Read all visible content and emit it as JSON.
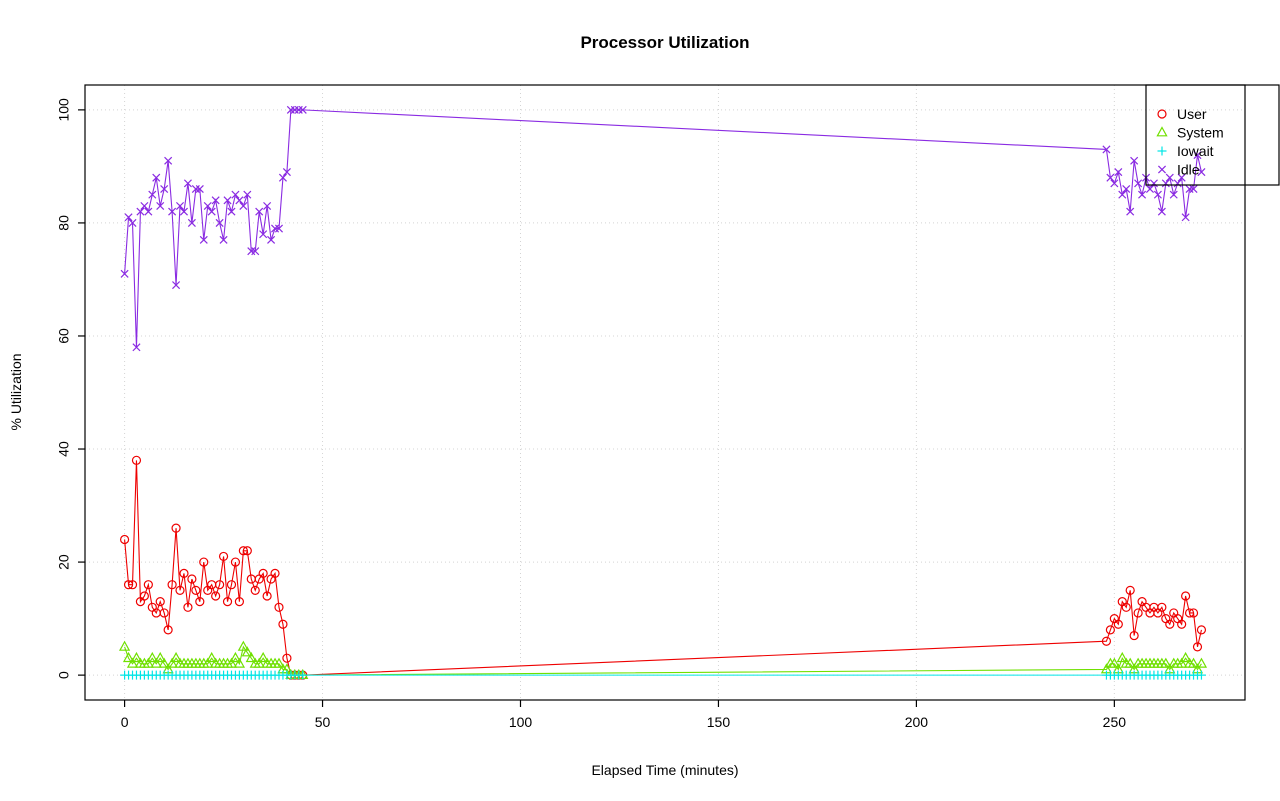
{
  "chart_data": {
    "type": "scatter",
    "title": "Processor Utilization",
    "xlabel": "Elapsed Time (minutes)",
    "ylabel": "% Utilization",
    "xlim": [
      -10,
      283
    ],
    "ylim": [
      -4.4,
      104.4
    ],
    "xticks": [
      0,
      50,
      100,
      150,
      200,
      250
    ],
    "yticks": [
      0,
      20,
      40,
      60,
      80,
      100
    ],
    "grid": true,
    "legend_position": "topright",
    "colors": {
      "grid": "#d4d4d4",
      "axis": "#000000",
      "background": "#ffffff"
    },
    "x": [
      0,
      1,
      2,
      3,
      4,
      5,
      6,
      7,
      8,
      9,
      10,
      11,
      12,
      13,
      14,
      15,
      16,
      17,
      18,
      19,
      20,
      21,
      22,
      23,
      24,
      25,
      26,
      27,
      28,
      29,
      30,
      31,
      32,
      33,
      34,
      35,
      36,
      37,
      38,
      39,
      40,
      41,
      42,
      43,
      44,
      45,
      248,
      249,
      250,
      251,
      252,
      253,
      254,
      255,
      256,
      257,
      258,
      259,
      260,
      261,
      262,
      263,
      264,
      265,
      266,
      267,
      268,
      269,
      270,
      271,
      272
    ],
    "series": [
      {
        "name": "User",
        "marker": "circle",
        "color": "#ee0000",
        "values": [
          24,
          16,
          16,
          38,
          13,
          14,
          16,
          12,
          11,
          13,
          11,
          8,
          16,
          26,
          15,
          18,
          12,
          17,
          15,
          13,
          20,
          15,
          16,
          14,
          16,
          21,
          13,
          16,
          20,
          13,
          22,
          22,
          17,
          15,
          17,
          18,
          14,
          17,
          18,
          12,
          9,
          3,
          0,
          0,
          0,
          0,
          6,
          8,
          10,
          9,
          13,
          12,
          15,
          7,
          11,
          13,
          12,
          11,
          12,
          11,
          12,
          10,
          9,
          11,
          10,
          9,
          14,
          11,
          11,
          5,
          8
        ]
      },
      {
        "name": "System",
        "marker": "triangle",
        "color": "#70e000",
        "values": [
          5,
          3,
          2,
          3,
          2,
          2,
          2,
          3,
          2,
          3,
          2,
          1,
          2,
          3,
          2,
          2,
          2,
          2,
          2,
          2,
          2,
          2,
          3,
          2,
          2,
          2,
          2,
          2,
          3,
          2,
          5,
          4,
          3,
          2,
          2,
          3,
          2,
          2,
          2,
          2,
          1,
          1,
          0,
          0,
          0,
          0,
          1,
          2,
          2,
          1,
          3,
          2,
          2,
          1,
          2,
          2,
          2,
          2,
          2,
          2,
          2,
          2,
          1,
          2,
          2,
          2,
          3,
          2,
          2,
          1,
          2
        ]
      },
      {
        "name": "Iowait",
        "marker": "plus",
        "color": "#00e5e5",
        "values": [
          0,
          0,
          0,
          0,
          0,
          0,
          0,
          0,
          0,
          0,
          0,
          0,
          0,
          0,
          0,
          0,
          0,
          0,
          0,
          0,
          0,
          0,
          0,
          0,
          0,
          0,
          0,
          0,
          0,
          0,
          0,
          0,
          0,
          0,
          0,
          0,
          0,
          0,
          0,
          0,
          0,
          0,
          0,
          0,
          0,
          0,
          0,
          0,
          0,
          0,
          0,
          0,
          0,
          0,
          0,
          0,
          0,
          0,
          0,
          0,
          0,
          0,
          0,
          0,
          0,
          0,
          0,
          0,
          0,
          0,
          0
        ]
      },
      {
        "name": "Idle",
        "marker": "x",
        "color": "#8a2be2",
        "values": [
          71,
          81,
          80,
          58,
          82,
          83,
          82,
          85,
          88,
          83,
          86,
          91,
          82,
          69,
          83,
          82,
          87,
          80,
          86,
          86,
          77,
          83,
          82,
          84,
          80,
          77,
          84,
          82,
          85,
          84,
          83,
          85,
          75,
          75,
          82,
          78,
          83,
          77,
          79,
          79,
          88,
          89,
          100,
          100,
          100,
          100,
          93,
          88,
          87,
          89,
          85,
          86,
          82,
          91,
          87,
          85,
          88,
          86,
          87,
          85,
          82,
          87,
          88,
          85,
          87,
          88,
          81,
          86,
          86,
          92,
          89
        ]
      }
    ]
  }
}
